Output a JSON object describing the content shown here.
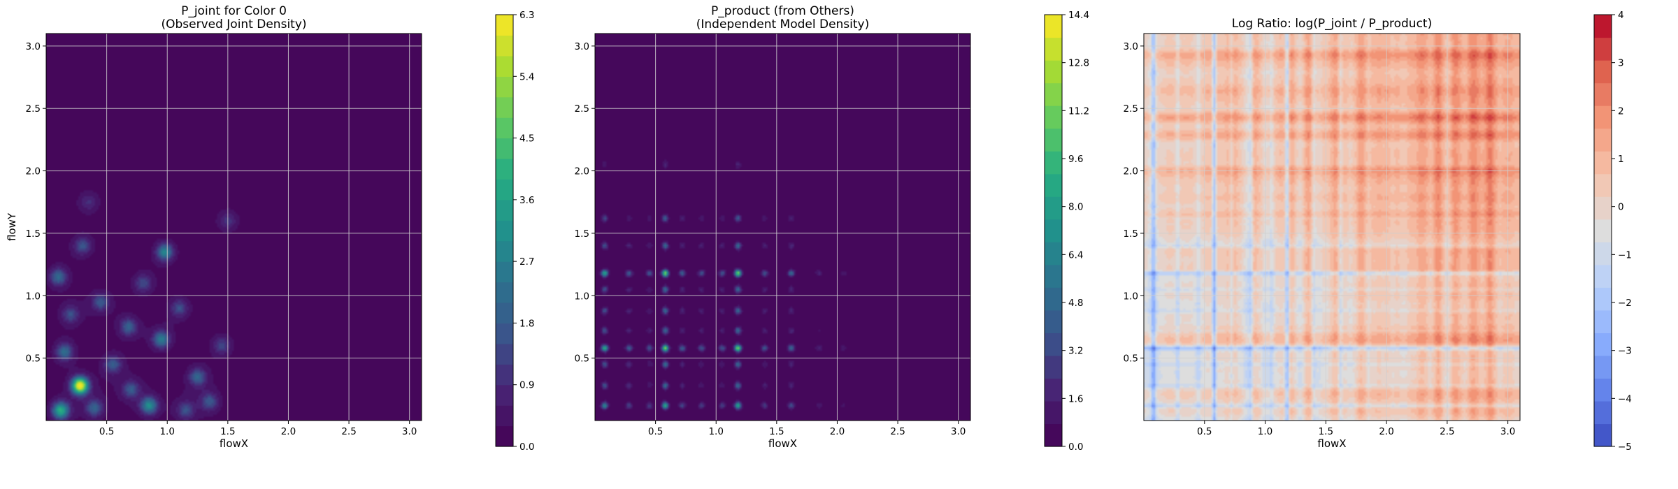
{
  "chart_data": [
    {
      "type": "heatmap",
      "title_line1": "P_joint for Color 0",
      "title_line2": "(Observed Joint Density)",
      "xlabel": "flowX",
      "ylabel": "flowY",
      "xlim": [
        0.0,
        3.1
      ],
      "ylim": [
        0.0,
        3.1
      ],
      "xticks": [
        "0.5",
        "1.0",
        "1.5",
        "2.0",
        "2.5",
        "3.0"
      ],
      "yticks": [
        "0.5",
        "1.0",
        "1.5",
        "2.0",
        "2.5",
        "3.0"
      ],
      "grid": true,
      "colormap": "viridis",
      "colorbar": {
        "range": [
          0.0,
          6.3
        ],
        "ticks": [
          "0.0",
          "0.9",
          "1.8",
          "2.7",
          "3.6",
          "4.5",
          "5.4",
          "6.3"
        ],
        "levels": 21
      },
      "peaks": [
        {
          "x": 0.28,
          "y": 0.28,
          "value": 6.3
        },
        {
          "x": 0.12,
          "y": 0.08,
          "value": 3.6
        },
        {
          "x": 0.85,
          "y": 0.12,
          "value": 2.7
        },
        {
          "x": 0.98,
          "y": 1.35,
          "value": 2.5
        },
        {
          "x": 0.95,
          "y": 0.65,
          "value": 2.3
        },
        {
          "x": 0.1,
          "y": 1.15,
          "value": 1.8
        },
        {
          "x": 0.15,
          "y": 0.55,
          "value": 1.9
        },
        {
          "x": 1.25,
          "y": 0.35,
          "value": 1.7
        },
        {
          "x": 0.68,
          "y": 0.75,
          "value": 1.6
        },
        {
          "x": 0.45,
          "y": 0.95,
          "value": 1.4
        },
        {
          "x": 0.55,
          "y": 0.45,
          "value": 1.5
        },
        {
          "x": 0.3,
          "y": 1.4,
          "value": 1.3
        },
        {
          "x": 1.1,
          "y": 0.9,
          "value": 1.2
        },
        {
          "x": 0.8,
          "y": 1.1,
          "value": 1.1
        },
        {
          "x": 1.35,
          "y": 0.15,
          "value": 1.3
        },
        {
          "x": 1.45,
          "y": 0.6,
          "value": 1.0
        },
        {
          "x": 0.4,
          "y": 0.1,
          "value": 1.6
        },
        {
          "x": 0.7,
          "y": 0.25,
          "value": 1.4
        },
        {
          "x": 1.15,
          "y": 0.08,
          "value": 1.2
        },
        {
          "x": 0.2,
          "y": 0.85,
          "value": 1.2
        },
        {
          "x": 1.5,
          "y": 1.6,
          "value": 0.7
        },
        {
          "x": 0.35,
          "y": 1.75,
          "value": 0.6
        }
      ]
    },
    {
      "type": "heatmap",
      "title_line1": "P_product (from Others)",
      "title_line2": "(Independent Model Density)",
      "xlabel": "flowX",
      "ylabel": "",
      "xlim": [
        0.0,
        3.1
      ],
      "ylim": [
        0.0,
        3.1
      ],
      "xticks": [
        "0.5",
        "1.0",
        "1.5",
        "2.0",
        "2.5",
        "3.0"
      ],
      "yticks": [
        "0.5",
        "1.0",
        "1.5",
        "2.0",
        "2.5",
        "3.0"
      ],
      "grid": true,
      "colormap": "viridis",
      "colorbar": {
        "range": [
          0.0,
          14.4
        ],
        "ticks": [
          "0.0",
          "1.6",
          "3.2",
          "4.8",
          "6.4",
          "8.0",
          "9.6",
          "11.2",
          "12.8",
          "14.4"
        ],
        "levels": 19
      },
      "x_modes": [
        {
          "x": 0.08,
          "weight": 0.75
        },
        {
          "x": 0.28,
          "weight": 0.35
        },
        {
          "x": 0.45,
          "weight": 0.3
        },
        {
          "x": 0.58,
          "weight": 1.0
        },
        {
          "x": 0.72,
          "weight": 0.35
        },
        {
          "x": 0.88,
          "weight": 0.3
        },
        {
          "x": 1.05,
          "weight": 0.3
        },
        {
          "x": 1.18,
          "weight": 1.0
        },
        {
          "x": 1.4,
          "weight": 0.3
        },
        {
          "x": 1.62,
          "weight": 0.4
        },
        {
          "x": 1.85,
          "weight": 0.12
        },
        {
          "x": 2.05,
          "weight": 0.08
        }
      ],
      "y_modes": [
        {
          "y": 0.12,
          "weight": 0.55
        },
        {
          "y": 0.28,
          "weight": 0.3
        },
        {
          "y": 0.45,
          "weight": 0.3
        },
        {
          "y": 0.58,
          "weight": 0.75
        },
        {
          "y": 0.72,
          "weight": 0.3
        },
        {
          "y": 0.88,
          "weight": 0.3
        },
        {
          "y": 1.05,
          "weight": 0.3
        },
        {
          "y": 1.18,
          "weight": 0.75
        },
        {
          "y": 1.4,
          "weight": 0.3
        },
        {
          "y": 1.62,
          "weight": 0.25
        },
        {
          "y": 2.05,
          "weight": 0.08
        }
      ]
    },
    {
      "type": "heatmap",
      "title_line1": "Log Ratio: log(P_joint / P_product)",
      "xlabel": "flowX",
      "ylabel": "",
      "xlim": [
        0.0,
        3.1
      ],
      "ylim": [
        0.0,
        3.1
      ],
      "xticks": [
        "0.5",
        "1.0",
        "1.5",
        "2.0",
        "2.5",
        "3.0"
      ],
      "yticks": [
        "0.5",
        "1.0",
        "1.5",
        "2.0",
        "2.5",
        "3.0"
      ],
      "grid": true,
      "colormap": "coolwarm",
      "colorbar": {
        "range": [
          -5,
          4
        ],
        "ticks": [
          "−5",
          "−4",
          "−3",
          "−2",
          "−1",
          "0",
          "1",
          "2",
          "3",
          "4"
        ],
        "levels": 19
      }
    }
  ]
}
